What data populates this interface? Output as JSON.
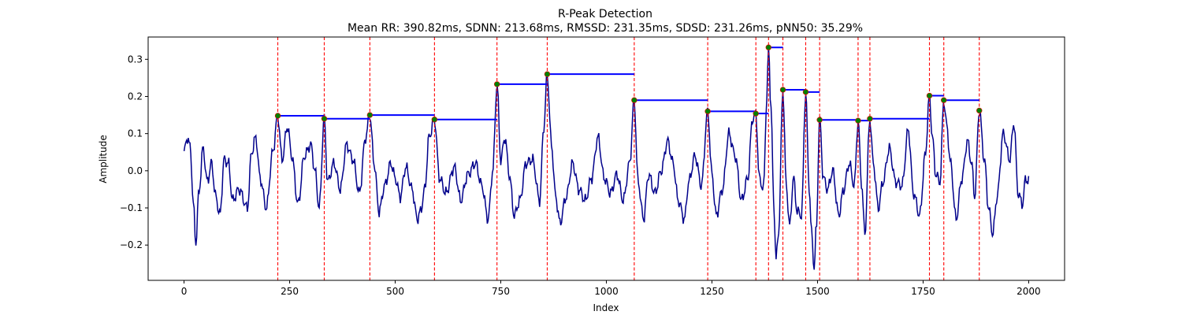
{
  "chart_data": {
    "type": "line",
    "title": "R-Peak Detection",
    "subtitle": "Mean RR: 390.82ms, SDNN: 213.68ms, RMSSD: 231.35ms, SDSD: 231.26ms, pNN50: 35.29%",
    "xlabel": "Index",
    "ylabel": "Amplitude",
    "xlim": [
      -85,
      2085
    ],
    "ylim": [
      -0.295,
      0.36
    ],
    "xticks": [
      0,
      250,
      500,
      750,
      1000,
      1250,
      1500,
      1750,
      2000
    ],
    "yticks": [
      -0.2,
      -0.1,
      0.0,
      0.1,
      0.2,
      0.3
    ],
    "ytick_labels": [
      "−0.2",
      "−0.1",
      "0.0",
      "0.1",
      "0.2",
      "0.3"
    ],
    "grid": false,
    "colors": {
      "signal": "#00008b",
      "peak_line": "#ff0000",
      "peak_marker": "#008000",
      "rr_interval": "#0000ff"
    },
    "signal": {
      "keypoints": [
        [
          0,
          0.05
        ],
        [
          8,
          0.09
        ],
        [
          15,
          0.06
        ],
        [
          22,
          -0.09
        ],
        [
          28,
          -0.195
        ],
        [
          35,
          -0.06
        ],
        [
          45,
          0.06
        ],
        [
          55,
          -0.03
        ],
        [
          65,
          0.02
        ],
        [
          75,
          -0.07
        ],
        [
          85,
          -0.12
        ],
        [
          95,
          0.03
        ],
        [
          105,
          0.02
        ],
        [
          115,
          -0.08
        ],
        [
          130,
          -0.05
        ],
        [
          150,
          -0.1
        ],
        [
          160,
          0.05
        ],
        [
          170,
          0.09
        ],
        [
          180,
          -0.02
        ],
        [
          195,
          -0.1
        ],
        [
          210,
          0.05
        ],
        [
          222,
          0.148
        ],
        [
          232,
          0.03
        ],
        [
          245,
          0.12
        ],
        [
          255,
          0.04
        ],
        [
          270,
          -0.09
        ],
        [
          285,
          0.04
        ],
        [
          300,
          0.07
        ],
        [
          310,
          0.0
        ],
        [
          320,
          -0.1
        ],
        [
          332,
          0.14
        ],
        [
          340,
          -0.03
        ],
        [
          355,
          0.02
        ],
        [
          370,
          -0.05
        ],
        [
          385,
          0.07
        ],
        [
          400,
          0.03
        ],
        [
          415,
          -0.06
        ],
        [
          430,
          0.09
        ],
        [
          440,
          0.15
        ],
        [
          450,
          0.02
        ],
        [
          462,
          -0.11
        ],
        [
          475,
          -0.04
        ],
        [
          490,
          0.02
        ],
        [
          500,
          -0.02
        ],
        [
          512,
          -0.07
        ],
        [
          525,
          0.01
        ],
        [
          540,
          -0.05
        ],
        [
          552,
          -0.13
        ],
        [
          560,
          -0.11
        ],
        [
          570,
          -0.05
        ],
        [
          580,
          0.09
        ],
        [
          593,
          0.138
        ],
        [
          605,
          -0.02
        ],
        [
          620,
          -0.06
        ],
        [
          640,
          0.01
        ],
        [
          655,
          -0.08
        ],
        [
          672,
          -0.01
        ],
        [
          690,
          0.02
        ],
        [
          705,
          -0.04
        ],
        [
          720,
          -0.13
        ],
        [
          731,
          0.0
        ],
        [
          741,
          0.233
        ],
        [
          750,
          0.03
        ],
        [
          760,
          0.09
        ],
        [
          770,
          -0.01
        ],
        [
          782,
          -0.12
        ],
        [
          795,
          -0.08
        ],
        [
          810,
          0.02
        ],
        [
          825,
          0.03
        ],
        [
          842,
          -0.08
        ],
        [
          852,
          0.12
        ],
        [
          860,
          0.26
        ],
        [
          870,
          0.07
        ],
        [
          880,
          -0.07
        ],
        [
          890,
          -0.14
        ],
        [
          905,
          -0.07
        ],
        [
          920,
          0.02
        ],
        [
          935,
          -0.05
        ],
        [
          950,
          -0.08
        ],
        [
          965,
          -0.02
        ],
        [
          980,
          0.09
        ],
        [
          995,
          -0.02
        ],
        [
          1010,
          -0.06
        ],
        [
          1025,
          -0.01
        ],
        [
          1040,
          -0.08
        ],
        [
          1055,
          0.02
        ],
        [
          1066,
          0.19
        ],
        [
          1075,
          -0.03
        ],
        [
          1088,
          -0.13
        ],
        [
          1100,
          -0.01
        ],
        [
          1115,
          -0.06
        ],
        [
          1130,
          0.0
        ],
        [
          1145,
          0.08
        ],
        [
          1158,
          0.02
        ],
        [
          1170,
          -0.08
        ],
        [
          1185,
          -0.13
        ],
        [
          1195,
          -0.03
        ],
        [
          1210,
          0.04
        ],
        [
          1225,
          -0.04
        ],
        [
          1240,
          0.16
        ],
        [
          1250,
          -0.01
        ],
        [
          1260,
          -0.12
        ],
        [
          1275,
          -0.05
        ],
        [
          1290,
          0.1
        ],
        [
          1305,
          0.04
        ],
        [
          1320,
          -0.08
        ],
        [
          1335,
          -0.02
        ],
        [
          1346,
          0.14
        ],
        [
          1354,
          0.154
        ],
        [
          1362,
          -0.02
        ],
        [
          1372,
          -0.05
        ],
        [
          1380,
          0.2
        ],
        [
          1384,
          0.33
        ],
        [
          1390,
          0.17
        ],
        [
          1396,
          -0.08
        ],
        [
          1402,
          -0.24
        ],
        [
          1408,
          -0.16
        ],
        [
          1418,
          0.218
        ],
        [
          1426,
          -0.04
        ],
        [
          1434,
          -0.15
        ],
        [
          1443,
          -0.02
        ],
        [
          1452,
          -0.11
        ],
        [
          1462,
          -0.12
        ],
        [
          1472,
          0.212
        ],
        [
          1480,
          -0.04
        ],
        [
          1486,
          -0.17
        ],
        [
          1492,
          -0.26
        ],
        [
          1497,
          -0.16
        ],
        [
          1505,
          0.137
        ],
        [
          1514,
          -0.02
        ],
        [
          1524,
          -0.05
        ],
        [
          1536,
          0.0
        ],
        [
          1550,
          -0.12
        ],
        [
          1562,
          -0.05
        ],
        [
          1575,
          0.02
        ],
        [
          1587,
          -0.04
        ],
        [
          1596,
          0.135
        ],
        [
          1604,
          -0.03
        ],
        [
          1612,
          -0.17
        ],
        [
          1624,
          0.14
        ],
        [
          1632,
          0.02
        ],
        [
          1644,
          -0.1
        ],
        [
          1655,
          -0.03
        ],
        [
          1670,
          0.06
        ],
        [
          1685,
          -0.03
        ],
        [
          1700,
          -0.04
        ],
        [
          1715,
          0.11
        ],
        [
          1727,
          -0.06
        ],
        [
          1742,
          -0.12
        ],
        [
          1755,
          0.04
        ],
        [
          1765,
          0.2
        ],
        [
          1772,
          0.09
        ],
        [
          1780,
          -0.01
        ],
        [
          1790,
          -0.03
        ],
        [
          1799,
          0.19
        ],
        [
          1806,
          0.12
        ],
        [
          1815,
          0.02
        ],
        [
          1828,
          -0.13
        ],
        [
          1842,
          -0.02
        ],
        [
          1855,
          0.08
        ],
        [
          1865,
          0.02
        ],
        [
          1872,
          -0.07
        ],
        [
          1883,
          0.162
        ],
        [
          1895,
          0.03
        ],
        [
          1905,
          -0.1
        ],
        [
          1915,
          -0.17
        ],
        [
          1925,
          -0.07
        ],
        [
          1940,
          0.1
        ],
        [
          1955,
          0.03
        ],
        [
          1965,
          0.13
        ],
        [
          1975,
          -0.06
        ],
        [
          1985,
          -0.09
        ],
        [
          1993,
          -0.02
        ],
        [
          2000,
          -0.03
        ]
      ]
    },
    "r_peaks": [
      {
        "x": 222,
        "y": 0.148
      },
      {
        "x": 332,
        "y": 0.14
      },
      {
        "x": 440,
        "y": 0.15
      },
      {
        "x": 593,
        "y": 0.138
      },
      {
        "x": 741,
        "y": 0.233
      },
      {
        "x": 860,
        "y": 0.26
      },
      {
        "x": 1066,
        "y": 0.19
      },
      {
        "x": 1240,
        "y": 0.16
      },
      {
        "x": 1354,
        "y": 0.154
      },
      {
        "x": 1384,
        "y": 0.332
      },
      {
        "x": 1418,
        "y": 0.218
      },
      {
        "x": 1472,
        "y": 0.212
      },
      {
        "x": 1505,
        "y": 0.137
      },
      {
        "x": 1596,
        "y": 0.135
      },
      {
        "x": 1624,
        "y": 0.14
      },
      {
        "x": 1765,
        "y": 0.202
      },
      {
        "x": 1799,
        "y": 0.19
      },
      {
        "x": 1883,
        "y": 0.162
      }
    ]
  }
}
